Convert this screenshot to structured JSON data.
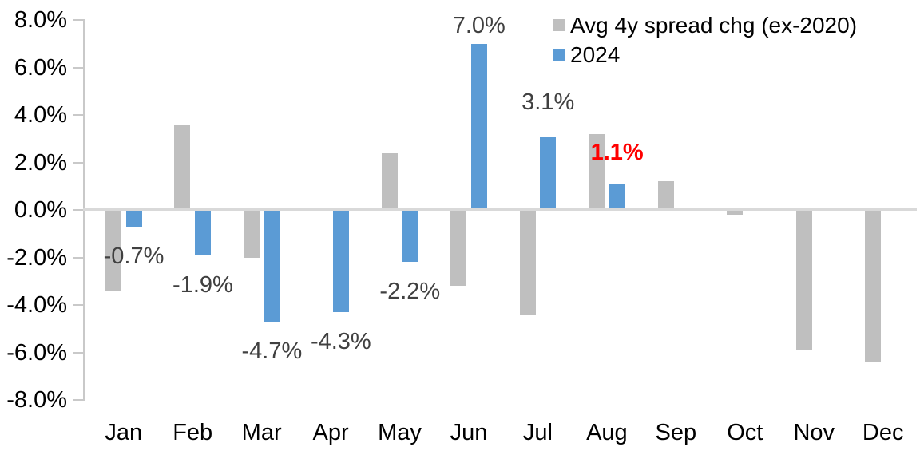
{
  "chart_data": {
    "type": "bar",
    "title": "",
    "categories": [
      "Jan",
      "Feb",
      "Mar",
      "Apr",
      "May",
      "Jun",
      "Jul",
      "Aug",
      "Sep",
      "Oct",
      "Nov",
      "Dec"
    ],
    "unit": "%",
    "series": [
      {
        "name": "Avg 4y spread chg (ex-2020)",
        "color": "#BFBFBF",
        "values": [
          -3.4,
          3.6,
          -2.0,
          0.0,
          2.4,
          -3.2,
          -4.4,
          3.2,
          1.2,
          -0.2,
          -5.9,
          -6.4
        ]
      },
      {
        "name": "2024",
        "color": "#5B9BD5",
        "values": [
          -0.7,
          -1.9,
          -4.7,
          -4.3,
          -2.2,
          7.0,
          3.1,
          1.1,
          null,
          null,
          null,
          null
        ],
        "data_labels": [
          {
            "index": 0,
            "text": "-0.7%",
            "color": "#404040",
            "bold": false,
            "dy": 0
          },
          {
            "index": 1,
            "text": "-1.9%",
            "color": "#404040",
            "bold": false,
            "dy": 0
          },
          {
            "index": 2,
            "text": "-4.7%",
            "color": "#404040",
            "bold": false,
            "dy": 0
          },
          {
            "index": 3,
            "text": "-4.3%",
            "color": "#404040",
            "bold": false,
            "dy": 0
          },
          {
            "index": 4,
            "text": "-2.2%",
            "color": "#404040",
            "bold": false,
            "dy": 0
          },
          {
            "index": 5,
            "text": "7.0%",
            "color": "#404040",
            "bold": false,
            "dy": 0
          },
          {
            "index": 6,
            "text": "3.1%",
            "color": "#404040",
            "bold": false,
            "dy": -20
          },
          {
            "index": 7,
            "text": "1.1%",
            "color": "#FF0000",
            "bold": true,
            "dy": -16
          }
        ]
      }
    ],
    "ylim": [
      -8,
      8
    ],
    "ytick_labels": [
      "8.0%",
      "6.0%",
      "4.0%",
      "2.0%",
      "0.0%",
      "-2.0%",
      "-4.0%",
      "-6.0%",
      "-8.0%"
    ],
    "grid": false,
    "legend_position": "top-right"
  },
  "colors": {
    "axis_line": "#C9C9C9",
    "zero_line": "#D9D9D9",
    "axis_text": "#000000",
    "data_label_default": "#404040",
    "highlight": "#FF0000"
  }
}
